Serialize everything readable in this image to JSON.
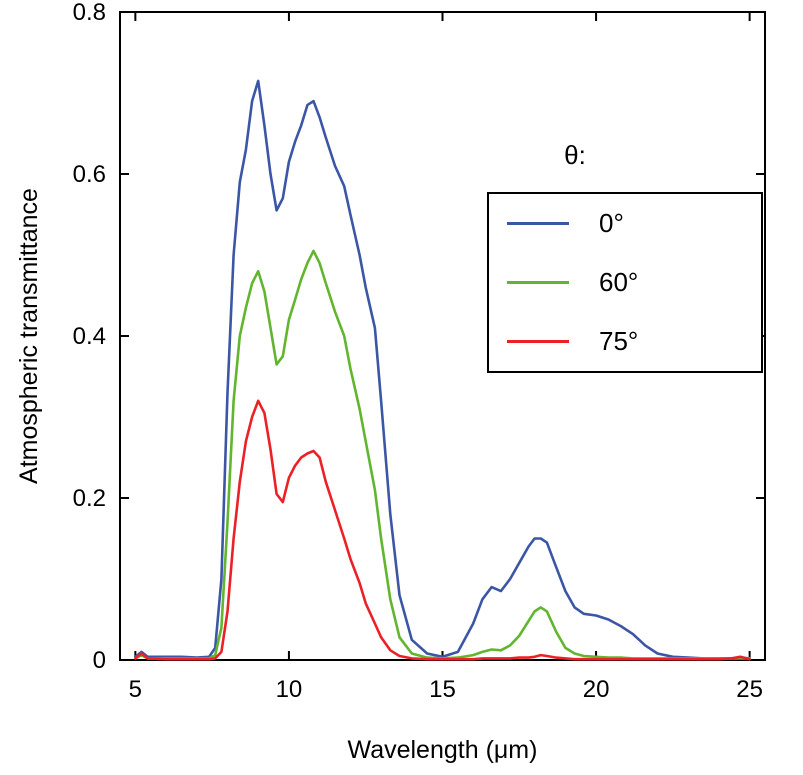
{
  "figure": {
    "legend": {
      "title": "θ:"
    }
  },
  "chart_data": {
    "type": "line",
    "title": "",
    "xlabel": "Wavelength (μm)",
    "ylabel": "Atmospheric transmittance",
    "xlim": [
      4.5,
      25.5
    ],
    "ylim": [
      0,
      0.8
    ],
    "xticks": [
      5,
      10,
      15,
      20,
      25
    ],
    "xtick_labels": [
      "5",
      "10",
      "15",
      "20",
      "25"
    ],
    "yticks": [
      0,
      0.2,
      0.4,
      0.6,
      0.8
    ],
    "ytick_labels": [
      "0",
      "0.2",
      "0.4",
      "0.6",
      "0.8"
    ],
    "grid": false,
    "legend_position": "upper right",
    "x": [
      5.0,
      5.2,
      5.4,
      6.0,
      6.5,
      7.0,
      7.4,
      7.6,
      7.8,
      8.0,
      8.2,
      8.4,
      8.6,
      8.8,
      9.0,
      9.2,
      9.4,
      9.6,
      9.8,
      10.0,
      10.2,
      10.4,
      10.6,
      10.8,
      11.0,
      11.2,
      11.5,
      11.8,
      12.0,
      12.3,
      12.5,
      12.8,
      13.0,
      13.3,
      13.6,
      14.0,
      14.5,
      15.0,
      15.5,
      16.0,
      16.3,
      16.6,
      16.9,
      17.2,
      17.5,
      17.8,
      18.0,
      18.2,
      18.4,
      18.7,
      19.0,
      19.3,
      19.6,
      20.0,
      20.4,
      20.8,
      21.2,
      21.6,
      22.0,
      22.5,
      23.0,
      23.5,
      24.0,
      24.4,
      24.7,
      25.0
    ],
    "series": [
      {
        "name": "0°",
        "color": "#3c56a6",
        "values": [
          0.004,
          0.01,
          0.004,
          0.004,
          0.004,
          0.003,
          0.004,
          0.015,
          0.1,
          0.33,
          0.5,
          0.59,
          0.63,
          0.69,
          0.715,
          0.66,
          0.6,
          0.555,
          0.57,
          0.615,
          0.64,
          0.66,
          0.685,
          0.69,
          0.67,
          0.645,
          0.61,
          0.585,
          0.55,
          0.5,
          0.46,
          0.41,
          0.32,
          0.18,
          0.08,
          0.025,
          0.008,
          0.004,
          0.01,
          0.045,
          0.075,
          0.09,
          0.085,
          0.1,
          0.12,
          0.14,
          0.15,
          0.15,
          0.145,
          0.115,
          0.085,
          0.065,
          0.057,
          0.055,
          0.05,
          0.042,
          0.032,
          0.018,
          0.008,
          0.004,
          0.003,
          0.002,
          0.002,
          0.002,
          0.003,
          0.002
        ]
      },
      {
        "name": "60°",
        "color": "#62b52f",
        "values": [
          0.002,
          0.006,
          0.002,
          0.002,
          0.002,
          0.002,
          0.002,
          0.006,
          0.04,
          0.17,
          0.32,
          0.4,
          0.435,
          0.465,
          0.48,
          0.455,
          0.41,
          0.365,
          0.375,
          0.42,
          0.445,
          0.47,
          0.49,
          0.505,
          0.49,
          0.465,
          0.43,
          0.4,
          0.36,
          0.31,
          0.27,
          0.21,
          0.15,
          0.075,
          0.028,
          0.008,
          0.003,
          0.002,
          0.003,
          0.006,
          0.01,
          0.013,
          0.012,
          0.018,
          0.03,
          0.048,
          0.06,
          0.065,
          0.06,
          0.035,
          0.015,
          0.008,
          0.005,
          0.004,
          0.003,
          0.003,
          0.002,
          0.002,
          0.002,
          0.002,
          0.002,
          0.002,
          0.002,
          0.002,
          0.002,
          0.002
        ]
      },
      {
        "name": "75°",
        "color": "#ec2127",
        "values": [
          0.002,
          0.008,
          0.002,
          0.001,
          0.001,
          0.001,
          0.001,
          0.002,
          0.01,
          0.06,
          0.15,
          0.22,
          0.27,
          0.3,
          0.32,
          0.305,
          0.26,
          0.205,
          0.195,
          0.225,
          0.24,
          0.25,
          0.255,
          0.258,
          0.25,
          0.22,
          0.185,
          0.15,
          0.125,
          0.095,
          0.07,
          0.045,
          0.028,
          0.012,
          0.005,
          0.002,
          0.001,
          0.001,
          0.001,
          0.001,
          0.002,
          0.002,
          0.002,
          0.002,
          0.003,
          0.003,
          0.004,
          0.006,
          0.005,
          0.003,
          0.002,
          0.001,
          0.001,
          0.001,
          0.001,
          0.001,
          0.001,
          0.001,
          0.001,
          0.001,
          0.001,
          0.001,
          0.001,
          0.002,
          0.004,
          0.001
        ]
      }
    ]
  }
}
